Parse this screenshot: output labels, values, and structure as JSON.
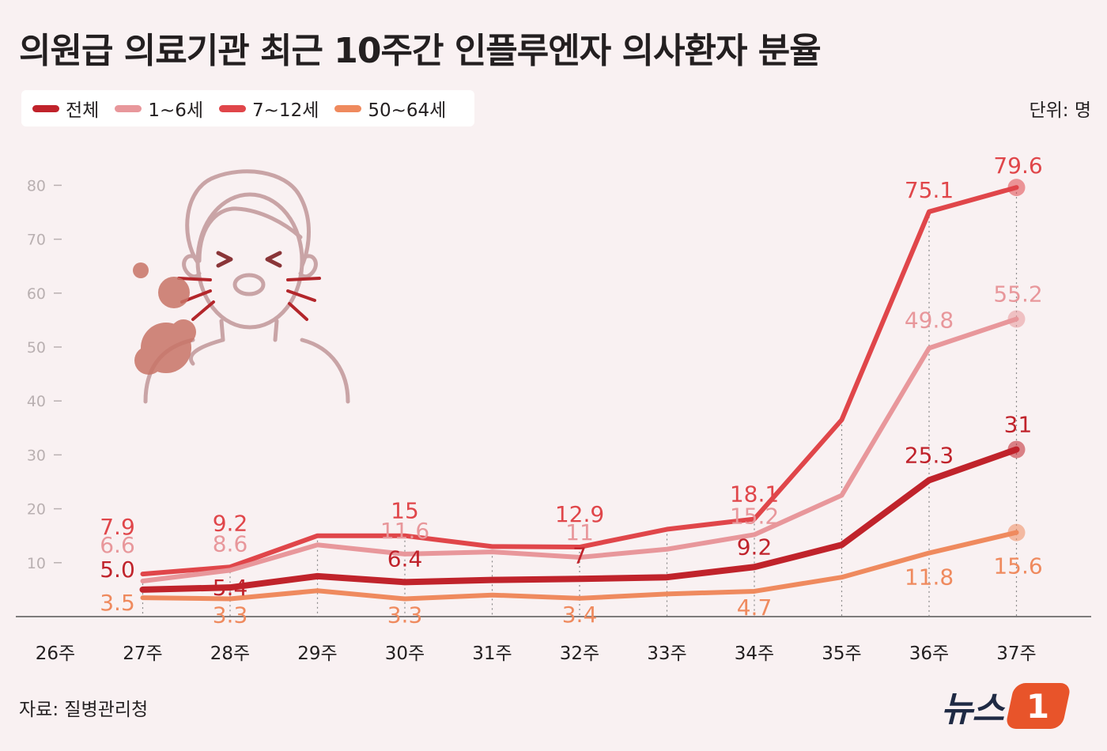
{
  "title": "의원급 의료기관 최근 10주간 인플루엔자 의사환자 분율",
  "unit": "단위: 명",
  "source": "자료: 질병관리청",
  "logo": {
    "text": "뉴스",
    "badge": "1"
  },
  "illustration": {
    "icon": "sneezing-person-icon"
  },
  "chart_data": {
    "type": "line",
    "categories": [
      "26주",
      "27주",
      "28주",
      "29주",
      "30주",
      "31주",
      "32주",
      "33주",
      "34주",
      "35주",
      "36주",
      "37주"
    ],
    "ylim": [
      0,
      85
    ],
    "yticks": [
      10,
      20,
      30,
      40,
      50,
      60,
      70,
      80
    ],
    "grid": false,
    "legend_position": "top-left",
    "series": [
      {
        "name": "7~12세",
        "color": "#e0464a",
        "values": [
          null,
          7.9,
          9.2,
          15,
          15,
          13,
          12.9,
          16.2,
          18.1,
          36.5,
          75.1,
          79.6
        ],
        "labels": [
          null,
          "7.9",
          "9.2",
          null,
          "15",
          null,
          "12.9",
          null,
          "18.1",
          null,
          "75.1",
          "79.6"
        ]
      },
      {
        "name": "1~6세",
        "color": "#e8979b",
        "values": [
          null,
          6.6,
          8.6,
          13.3,
          11.6,
          12,
          11,
          12.5,
          15.2,
          22.5,
          49.8,
          55.2
        ],
        "labels": [
          null,
          "6.6",
          "8.6",
          null,
          "11.6",
          null,
          "11",
          null,
          "15.2",
          null,
          "49.8",
          "55.2"
        ]
      },
      {
        "name": "전체",
        "color": "#c0232b",
        "values": [
          null,
          5.0,
          5.4,
          7.5,
          6.4,
          6.8,
          7,
          7.3,
          9.2,
          13.3,
          25.3,
          31
        ],
        "labels": [
          null,
          "5.0",
          "5.4",
          null,
          "6.4",
          null,
          "7",
          null,
          "9.2",
          null,
          "25.3",
          "31"
        ]
      },
      {
        "name": "50~64세",
        "color": "#ef8a5e",
        "values": [
          null,
          3.5,
          3.3,
          4.8,
          3.3,
          4,
          3.4,
          4.2,
          4.7,
          7.3,
          11.8,
          15.6
        ],
        "labels": [
          null,
          "3.5",
          "3.3",
          null,
          "3.3",
          null,
          "3.4",
          null,
          "4.7",
          null,
          "11.8",
          "15.6"
        ]
      }
    ]
  }
}
